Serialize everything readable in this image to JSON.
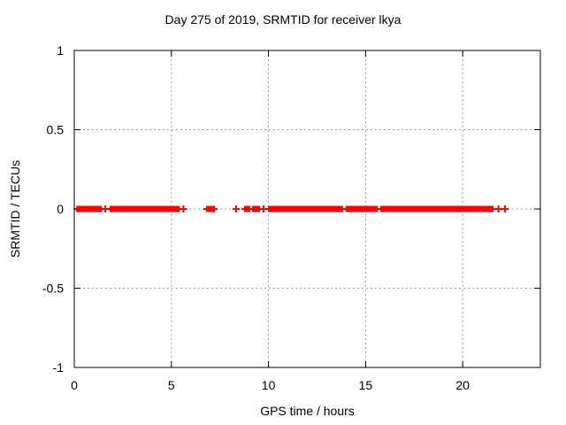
{
  "chart_data": {
    "type": "scatter",
    "title": "Day 275 of 2019, SRMTID for receiver lkya",
    "xlabel": "GPS time / hours",
    "ylabel": "SRMTID / TECUs",
    "xlim": [
      0,
      24
    ],
    "ylim": [
      -1,
      1
    ],
    "xticks": [
      0,
      5,
      10,
      15,
      20
    ],
    "yticks": [
      1,
      0.5,
      0,
      -0.5,
      -1
    ],
    "ytick_labels": [
      "1",
      "0.5",
      "0",
      "-0.5",
      "-1"
    ],
    "grid": true,
    "legend_position": "none",
    "marker": "plus",
    "colors": {
      "points": "#ff0000",
      "grid": "#a0a0a0",
      "axis": "#000000",
      "background": "#ffffff"
    },
    "series": [
      {
        "name": "SRMTID",
        "y_value": 0,
        "dense_segments_x_hours": [
          [
            0.1,
            1.41
          ],
          [
            1.82,
            5.42
          ],
          [
            6.78,
            7.24
          ],
          [
            8.74,
            9.06
          ],
          [
            9.15,
            9.57
          ],
          [
            9.97,
            13.84
          ],
          [
            13.97,
            15.62
          ],
          [
            15.76,
            21.59
          ]
        ],
        "isolated_x_hours": [
          1.6,
          5.62,
          8.33,
          9.74,
          21.84,
          22.18
        ]
      }
    ]
  }
}
